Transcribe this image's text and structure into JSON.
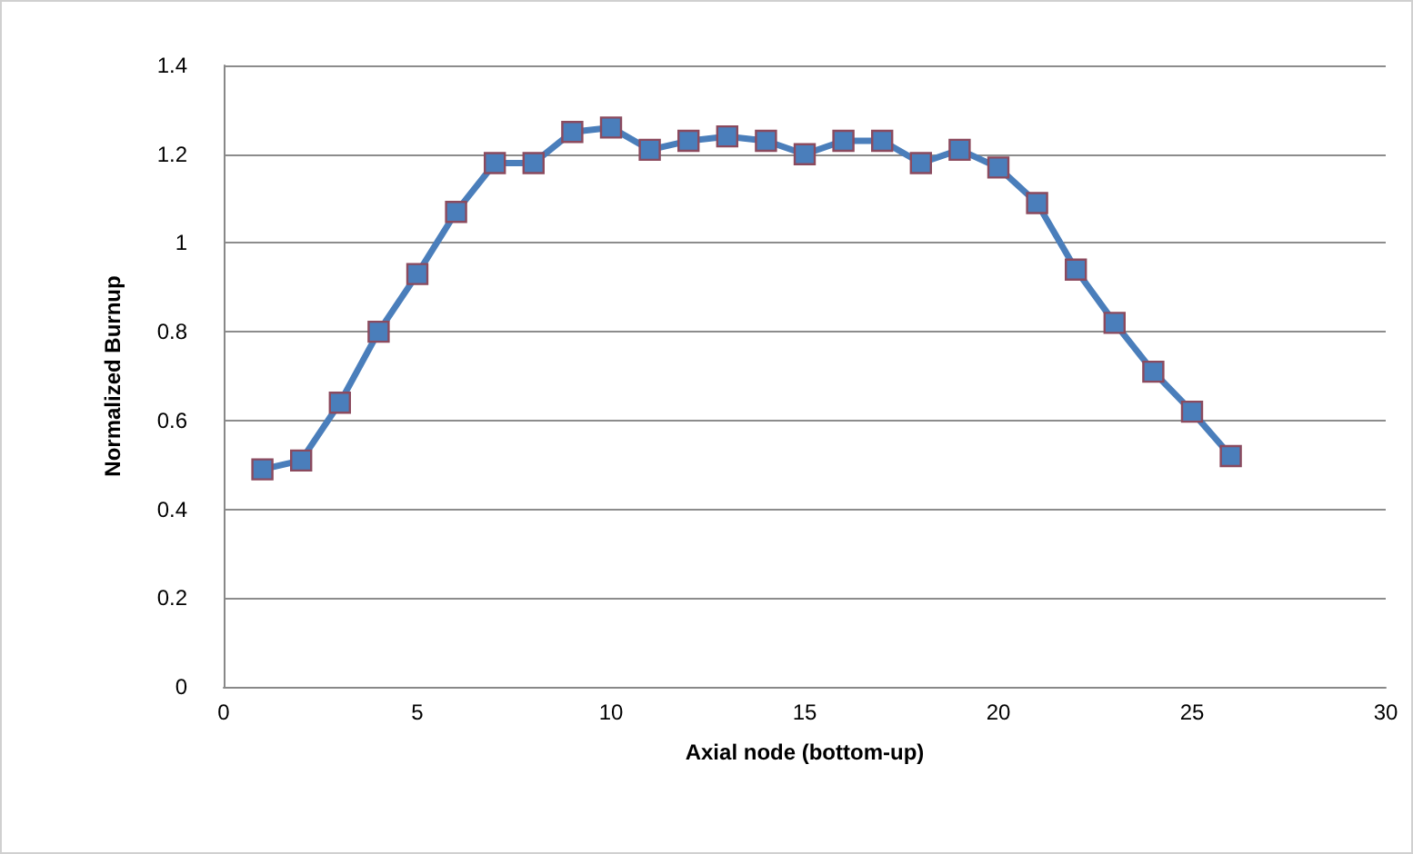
{
  "chart_data": {
    "type": "line",
    "xlabel": "Axial node (bottom-up)",
    "ylabel": "Normalized Burnup",
    "x": [
      1,
      2,
      3,
      4,
      5,
      6,
      7,
      8,
      9,
      10,
      11,
      12,
      13,
      14,
      15,
      16,
      17,
      18,
      19,
      20,
      21,
      22,
      23,
      24,
      25,
      26
    ],
    "series": [
      {
        "color": "#4a7ebb",
        "values": [
          0.49,
          0.51,
          0.64,
          0.8,
          0.93,
          1.07,
          1.18,
          1.18,
          1.25,
          1.26,
          1.21,
          1.23,
          1.24,
          1.23,
          1.2,
          1.23,
          1.23,
          1.18,
          1.21,
          1.17,
          1.09,
          0.94,
          0.82,
          0.71,
          0.62,
          0.52
        ]
      }
    ],
    "xlim": [
      0,
      30
    ],
    "xticks": [
      0,
      5,
      10,
      15,
      20,
      25,
      30
    ],
    "ylim": [
      0,
      1.4
    ],
    "yticks": [
      0,
      0.2,
      0.4,
      0.6,
      0.8,
      1,
      1.2,
      1.4
    ],
    "grid": "y",
    "marker": "square",
    "line_style": "solid"
  }
}
